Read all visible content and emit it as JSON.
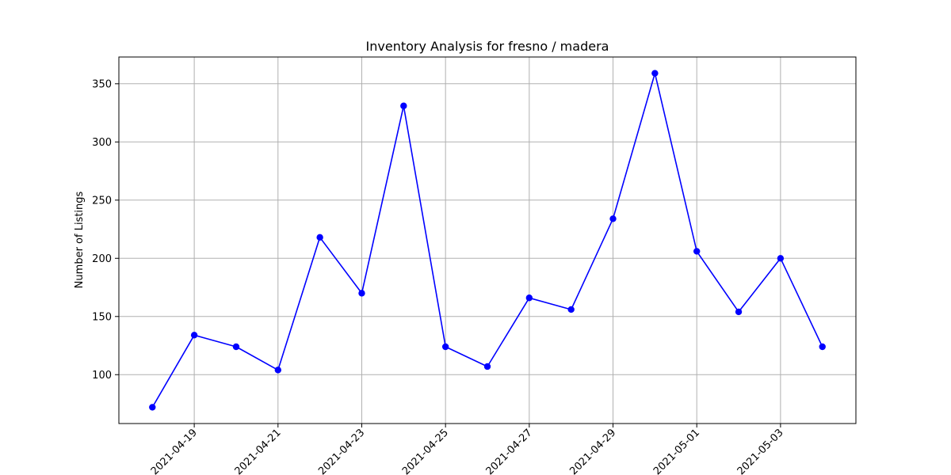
{
  "chart_data": {
    "type": "line",
    "title": "Inventory Analysis for fresno / madera",
    "xlabel": "",
    "ylabel": "Number of Listings",
    "x": [
      "2021-04-18",
      "2021-04-19",
      "2021-04-20",
      "2021-04-21",
      "2021-04-22",
      "2021-04-23",
      "2021-04-24",
      "2021-04-25",
      "2021-04-26",
      "2021-04-27",
      "2021-04-28",
      "2021-04-29",
      "2021-04-30",
      "2021-05-01",
      "2021-05-02",
      "2021-05-03",
      "2021-05-04"
    ],
    "series": [
      {
        "values": [
          72,
          134,
          124,
          104,
          218,
          170,
          331,
          124,
          107,
          166,
          156,
          234,
          359,
          206,
          154,
          200,
          124
        ]
      }
    ],
    "xticks": [
      "2021-04-19",
      "2021-04-21",
      "2021-04-23",
      "2021-04-25",
      "2021-04-27",
      "2021-04-29",
      "2021-05-01",
      "2021-05-03"
    ],
    "yticks": [
      100,
      150,
      200,
      250,
      300,
      350
    ],
    "ylim": [
      58,
      373
    ],
    "grid": true,
    "legend": "none",
    "colors": {
      "line": "#0000ff",
      "marker": "#0000ff",
      "grid": "#b0b0b0",
      "axes": "#000000"
    }
  }
}
